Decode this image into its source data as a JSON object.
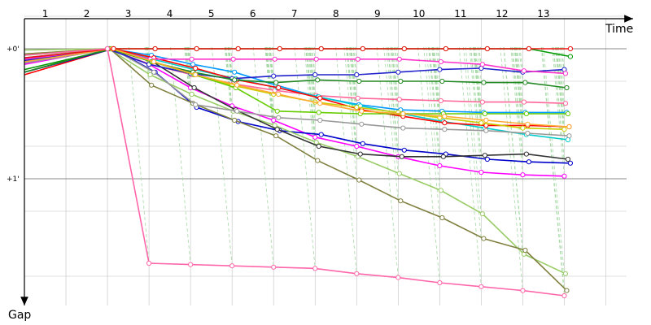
{
  "chart_data": {
    "type": "line",
    "title": "",
    "xlabel": "Time",
    "ylabel": "Gap",
    "x_ticks": [
      "1",
      "2",
      "3",
      "4",
      "5",
      "6",
      "7",
      "8",
      "9",
      "10",
      "11",
      "12",
      "13"
    ],
    "y_ticks": [
      "+0'",
      "+1'"
    ],
    "y_range_minutes": [
      -0.4,
      2.0
    ],
    "x_range_laps": [
      0,
      14.5
    ],
    "grid": true,
    "series": [
      {
        "color": "#ff00ff",
        "values": [
          0.12,
          0.0,
          0.12,
          0.3,
          0.44,
          0.55,
          0.68,
          0.75,
          0.83,
          0.9,
          0.95,
          0.97,
          0.98
        ]
      },
      {
        "color": "#ff6699",
        "values": [
          0.08,
          0.0,
          0.12,
          0.2,
          0.27,
          0.32,
          0.36,
          0.38,
          0.39,
          0.4,
          0.41,
          0.41,
          0.42
        ]
      },
      {
        "color": "#0099ff",
        "values": [
          0.1,
          0.0,
          0.05,
          0.12,
          0.18,
          0.28,
          0.37,
          0.43,
          0.47,
          0.48,
          0.49,
          0.49,
          0.49
        ]
      },
      {
        "color": "#00cccc",
        "values": [
          0.07,
          0.0,
          0.08,
          0.16,
          0.23,
          0.3,
          0.37,
          0.44,
          0.5,
          0.56,
          0.61,
          0.66,
          0.7
        ]
      },
      {
        "color": "#ff0000",
        "values": [
          0.2,
          0.0,
          0.07,
          0.15,
          0.24,
          0.3,
          0.38,
          0.47,
          0.52,
          0.57,
          0.59,
          0.59,
          0.6
        ]
      },
      {
        "color": "#0000cc",
        "values": [
          0.18,
          0.0,
          0.18,
          0.45,
          0.56,
          0.63,
          0.66,
          0.73,
          0.78,
          0.81,
          0.85,
          0.87,
          0.88
        ]
      },
      {
        "color": "#cccc00",
        "values": [
          0.04,
          0.0,
          0.09,
          0.19,
          0.28,
          0.35,
          0.41,
          0.45,
          0.49,
          0.53,
          0.57,
          0.61,
          0.62
        ]
      },
      {
        "color": "#99cc66",
        "values": [
          0.01,
          0.0,
          0.2,
          0.35,
          0.48,
          0.59,
          0.72,
          0.83,
          0.96,
          1.09,
          1.27,
          1.58,
          1.73
        ]
      },
      {
        "color": "#808040",
        "values": [
          0.04,
          0.0,
          0.28,
          0.42,
          0.55,
          0.67,
          0.86,
          1.01,
          1.17,
          1.3,
          1.46,
          1.55,
          1.86
        ]
      },
      {
        "color": "#333333",
        "values": [
          0.1,
          0.0,
          0.1,
          0.3,
          0.47,
          0.62,
          0.75,
          0.81,
          0.83,
          0.83,
          0.82,
          0.81,
          0.85
        ]
      },
      {
        "color": "#999999",
        "values": [
          0.11,
          0.0,
          0.18,
          0.43,
          0.48,
          0.53,
          0.55,
          0.58,
          0.61,
          0.62,
          0.63,
          0.65,
          0.67
        ]
      },
      {
        "color": "#009900",
        "values": [
          0.16,
          0.0,
          0.0,
          0.0,
          0.0,
          0.0,
          0.0,
          0.0,
          0.0,
          0.0,
          0.0,
          0.0,
          0.06
        ]
      },
      {
        "color": "#2222cc",
        "values": [
          0.09,
          0.0,
          0.12,
          0.19,
          0.23,
          0.21,
          0.2,
          0.2,
          0.18,
          0.16,
          0.15,
          0.18,
          0.16
        ]
      },
      {
        "color": "#ff33cc",
        "values": [
          0.08,
          0.0,
          0.08,
          0.08,
          0.08,
          0.08,
          0.08,
          0.08,
          0.08,
          0.1,
          0.12,
          0.17,
          0.19
        ]
      },
      {
        "color": "#228822",
        "values": [
          0.18,
          0.0,
          0.1,
          0.18,
          0.24,
          0.26,
          0.24,
          0.25,
          0.25,
          0.25,
          0.26,
          0.26,
          0.3
        ]
      },
      {
        "color": "#66cc00",
        "values": [
          0.05,
          0.0,
          0.1,
          0.2,
          0.3,
          0.48,
          0.49,
          0.5,
          0.5,
          0.5,
          0.5,
          0.5,
          0.5
        ]
      },
      {
        "color": "#ffaa33",
        "values": [
          0.1,
          0.0,
          0.1,
          0.2,
          0.28,
          0.35,
          0.42,
          0.48,
          0.5,
          0.52,
          0.55,
          0.58,
          0.6
        ]
      },
      {
        "color": "#ee1111",
        "values": [
          0.07,
          0.0,
          0.0,
          0.0,
          0.0,
          0.0,
          0.0,
          0.0,
          0.0,
          0.0,
          0.0,
          0.0,
          0.0
        ]
      },
      {
        "color": "#ff66aa",
        "values": [
          0.05,
          0.0,
          1.65,
          1.66,
          1.67,
          1.68,
          1.69,
          1.73,
          1.76,
          1.8,
          1.83,
          1.86,
          1.9
        ]
      }
    ]
  },
  "styles": {
    "grid_color": "#c0c0c0",
    "axis_color": "#000000",
    "drop_line_color": "#a6d9a6"
  }
}
